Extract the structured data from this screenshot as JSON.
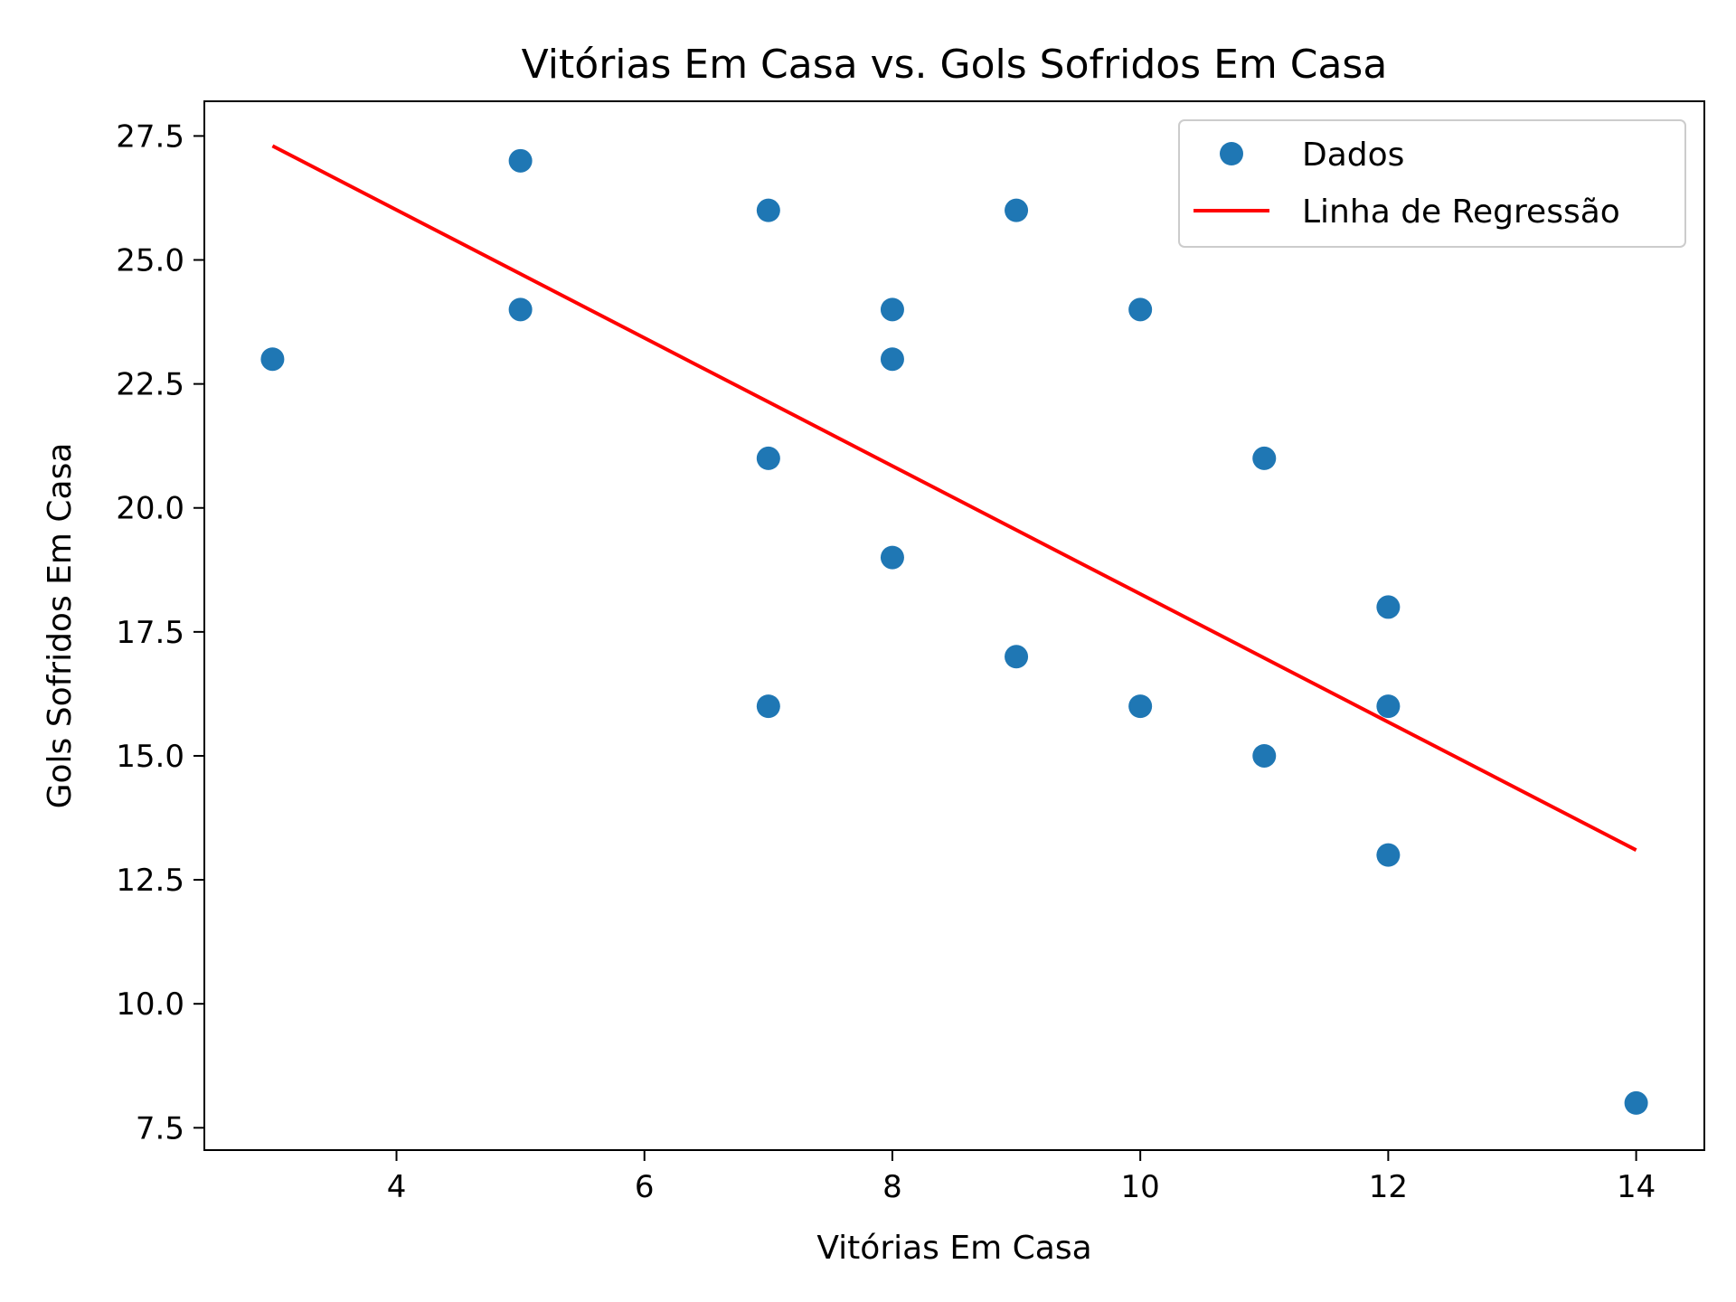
{
  "chart_data": {
    "type": "scatter",
    "title": "Vitórias Em Casa vs. Gols Sofridos Em Casa",
    "xlabel": "Vitórias Em Casa",
    "ylabel": "Gols Sofridos Em Casa",
    "xlim": [
      2.45,
      14.55
    ],
    "ylim": [
      7.05,
      28.2
    ],
    "xticks": [
      4,
      6,
      8,
      10,
      12,
      14
    ],
    "xtick_labels": [
      "4",
      "6",
      "8",
      "10",
      "12",
      "14"
    ],
    "yticks": [
      7.5,
      10.0,
      12.5,
      15.0,
      17.5,
      20.0,
      22.5,
      25.0,
      27.5
    ],
    "ytick_labels": [
      "7.5",
      "10.0",
      "12.5",
      "15.0",
      "17.5",
      "20.0",
      "22.5",
      "25.0",
      "27.5"
    ],
    "grid": false,
    "legend_position": "top-right",
    "series": [
      {
        "name": "Dados",
        "kind": "scatter",
        "color": "#1f77b4",
        "points": [
          {
            "x": 3,
            "y": 23
          },
          {
            "x": 5,
            "y": 27
          },
          {
            "x": 5,
            "y": 24
          },
          {
            "x": 7,
            "y": 26
          },
          {
            "x": 7,
            "y": 21
          },
          {
            "x": 7,
            "y": 16
          },
          {
            "x": 8,
            "y": 24
          },
          {
            "x": 8,
            "y": 23
          },
          {
            "x": 8,
            "y": 19
          },
          {
            "x": 9,
            "y": 26
          },
          {
            "x": 9,
            "y": 17
          },
          {
            "x": 10,
            "y": 24
          },
          {
            "x": 10,
            "y": 16
          },
          {
            "x": 11,
            "y": 21
          },
          {
            "x": 11,
            "y": 15
          },
          {
            "x": 12,
            "y": 18
          },
          {
            "x": 12,
            "y": 16
          },
          {
            "x": 12,
            "y": 13
          },
          {
            "x": 14,
            "y": 8
          }
        ]
      },
      {
        "name": "Linha de Regressão",
        "kind": "line",
        "color": "#ff0000",
        "points": [
          {
            "x": 3,
            "y": 27.3
          },
          {
            "x": 14,
            "y": 13.1
          }
        ]
      }
    ]
  }
}
